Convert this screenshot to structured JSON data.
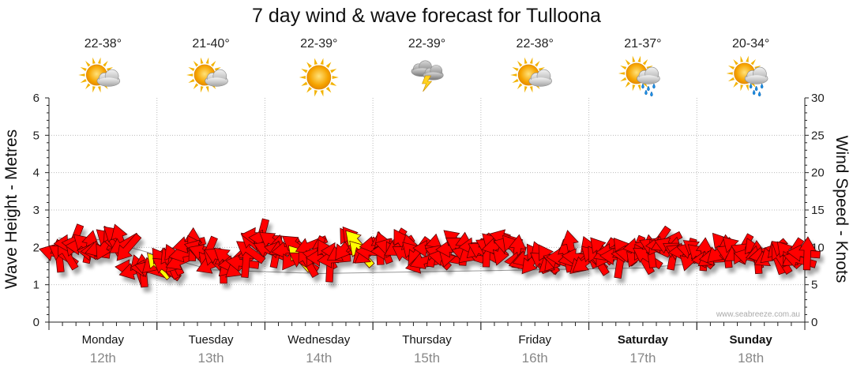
{
  "chart_data": {
    "type": "line",
    "title": "7 day wind & wave forecast for Tulloona",
    "ylabel_left": "Wave Height - Metres",
    "ylabel_right": "Wind Speed - Knots",
    "ylim_left": [
      0,
      6
    ],
    "ylim_right": [
      0,
      30
    ],
    "yticks_left": [
      "0",
      "1",
      "2",
      "3",
      "4",
      "5",
      "6"
    ],
    "yticks_right": [
      "0",
      "5",
      "10",
      "15",
      "20",
      "25",
      "30"
    ],
    "grid": true,
    "watermark": "www.seabreeze.com.au",
    "days": [
      {
        "name": "Monday",
        "date": "12th",
        "temp": "22-38°",
        "icon": "partly-cloudy-icon",
        "bold": false
      },
      {
        "name": "Tuesday",
        "date": "13th",
        "temp": "21-40°",
        "icon": "partly-cloudy-icon",
        "bold": false
      },
      {
        "name": "Wednesday",
        "date": "14th",
        "temp": "22-39°",
        "icon": "sunny-icon",
        "bold": false
      },
      {
        "name": "Thursday",
        "date": "15th",
        "temp": "22-39°",
        "icon": "thunderstorm-icon",
        "bold": false
      },
      {
        "name": "Friday",
        "date": "16th",
        "temp": "22-38°",
        "icon": "partly-cloudy-icon",
        "bold": false
      },
      {
        "name": "Saturday",
        "date": "17th",
        "temp": "21-37°",
        "icon": "showers-icon",
        "bold": true
      },
      {
        "name": "Sunday",
        "date": "18th",
        "temp": "20-34°",
        "icon": "showers-icon",
        "bold": true
      }
    ],
    "series": [
      {
        "name": "Wind Speed",
        "axis": "right",
        "arrow_colors": {
          "normal": "#ff0000",
          "highlight": "#ffff00"
        },
        "wind_knots": [
          9.2,
          8.9,
          9.0,
          9.1,
          10.6,
          10.9,
          10.4,
          10.1,
          10.2,
          10.1,
          9.3,
          9.6,
          9.9,
          10.3,
          10.9,
          10.9,
          11.3,
          11.0,
          10.4,
          9.9,
          7.2,
          6.9,
          6.9,
          6.9,
          7.2,
          7.0,
          8.1,
          7.6,
          8.1,
          7.2,
          7.9,
          8.4,
          8.3,
          8.2,
          9.2,
          10.4,
          10.4,
          9.7,
          9.8,
          9.2,
          9.3,
          7.7,
          8.1,
          8.7,
          7.4,
          8.5,
          7.7,
          7.8,
          7.4,
          7.9,
          8.2,
          9.5,
          10.5,
          11.5,
          11.6,
          11.2,
          9.6,
          10.7,
          9.5,
          9.6,
          10.0,
          9.7,
          8.8,
          10.2,
          8.6,
          8.1,
          8.1,
          10.3,
          9.4,
          8.8,
          8.6,
          9.1,
          7.6,
          8.4,
          9.5,
          9.4,
          10.1,
          10.7,
          11.0,
          10.6,
          9.2,
          9.5,
          9.2,
          9.4,
          10.4,
          9.9,
          10.0,
          9.5,
          10.0,
          10.5,
          10.1,
          10.5,
          8.9,
          9.6,
          9.1,
          9.4,
          7.7,
          8.3,
          9.8,
          9.6,
          8.8,
          9.1,
          8.6,
          9.5,
          9.8,
          10.8,
          10.1,
          9.8,
          9.0,
          9.4,
          10.2,
          10.1,
          9.4,
          9.6,
          9.9,
          10.3,
          10.2,
          9.7,
          11.2,
          10.2,
          9.9,
          9.5,
          8.3,
          8.2,
          8.6,
          8.2,
          8.6,
          8.7,
          8.0,
          8.5,
          8.1,
          8.5,
          8.2,
          8.7,
          8.9,
          10.1,
          8.6,
          8.7,
          8.0,
          8.1,
          9.4,
          8.6,
          8.3,
          9.6,
          9.2,
          9.4,
          9.4,
          8.8,
          8.1,
          9.5,
          9.1,
          9.0,
          9.4,
          10.2,
          8.5,
          8.7,
          9.5,
          10.0,
          10.8,
          10.4,
          10.7,
          10.1,
          9.2,
          9.4,
          9.2,
          9.5,
          9.0,
          9.5,
          9.6,
          8.9,
          9.1,
          8.4,
          8.8,
          8.7,
          9.5,
          10.2,
          9.5,
          9.1,
          9.8,
          9.4,
          9.7,
          9.3,
          8.7,
          9.2,
          8.7,
          9.3,
          9.0,
          8.7,
          9.4,
          8.6,
          8.5,
          9.4,
          9.1,
          9.2,
          8.8,
          8.3,
          9.2,
          9.2
        ],
        "highlight_points": [
          27,
          64,
          79,
          80
        ]
      },
      {
        "name": "Wave Height",
        "axis": "left",
        "color": "#999999",
        "values_m": [
          2.2,
          1.4,
          1.3,
          1.35,
          1.4,
          1.45,
          1.7
        ]
      }
    ]
  }
}
